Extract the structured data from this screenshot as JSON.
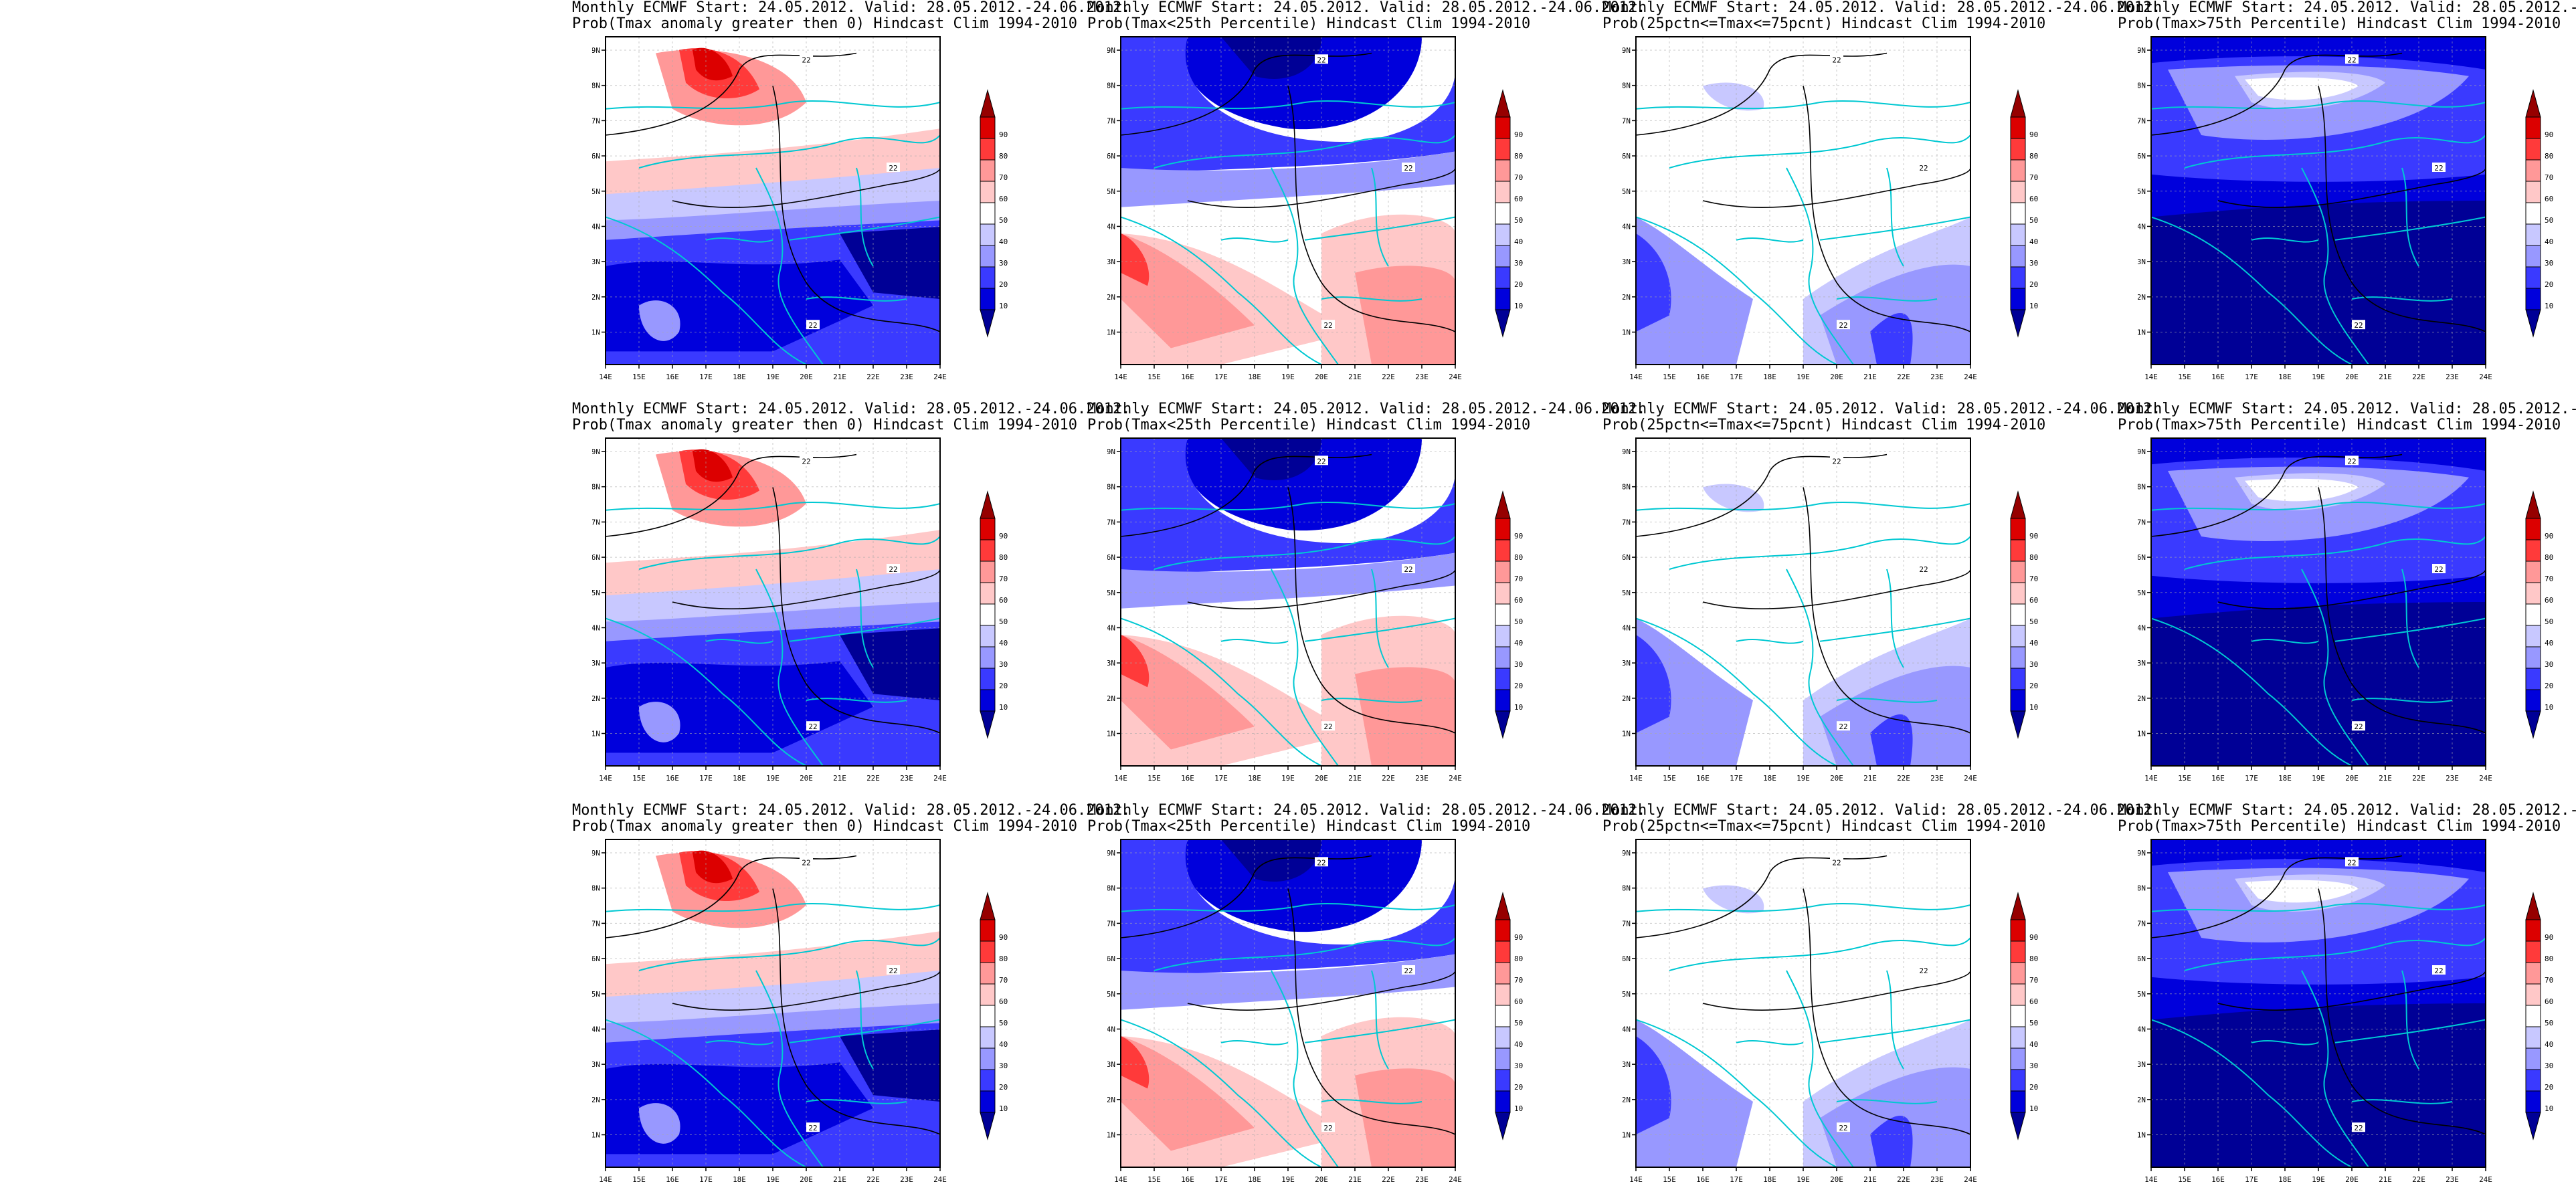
{
  "panel_common": {
    "title_line1": "Monthly ECMWF Start: 24.05.2012. Valid: 28.05.2012.-24.06.2012."
  },
  "panel_titles": {
    "col1": "Prob(Tmax anomaly greater then 0) Hindcast Clim 1994-2010",
    "col2": "Prob(Tmax<25th Percentile) Hindcast Clim 1994-2010",
    "col3": "Prob(25pctn<=Tmax<=75pcnt) Hindcast Clim 1994-2010",
    "col4": "Prob(Tmax>75th Percentile) Hindcast Clim 1994-2010"
  },
  "lon_ticks": [
    "14E",
    "15E",
    "16E",
    "17E",
    "18E",
    "19E",
    "20E",
    "21E",
    "22E",
    "23E",
    "24E"
  ],
  "lat_ticks": [
    "49N",
    "48N",
    "47N",
    "46N",
    "45N",
    "44N",
    "43N",
    "42N",
    "41N"
  ],
  "legend_levels": [
    "90",
    "80",
    "70",
    "60",
    "50",
    "40",
    "30",
    "20",
    "10"
  ],
  "contour_label": "22",
  "colors": {
    "map_land": "#ffffff",
    "borders": "#00c8d2",
    "contour": "#000000",
    "levels": [
      "#000096",
      "#0000dc",
      "#3a3aff",
      "#9898ff",
      "#c8c8ff",
      "#ffffff",
      "#ffc8c8",
      "#ff9898",
      "#ff3a3a",
      "#dc0000",
      "#960000"
    ]
  }
}
